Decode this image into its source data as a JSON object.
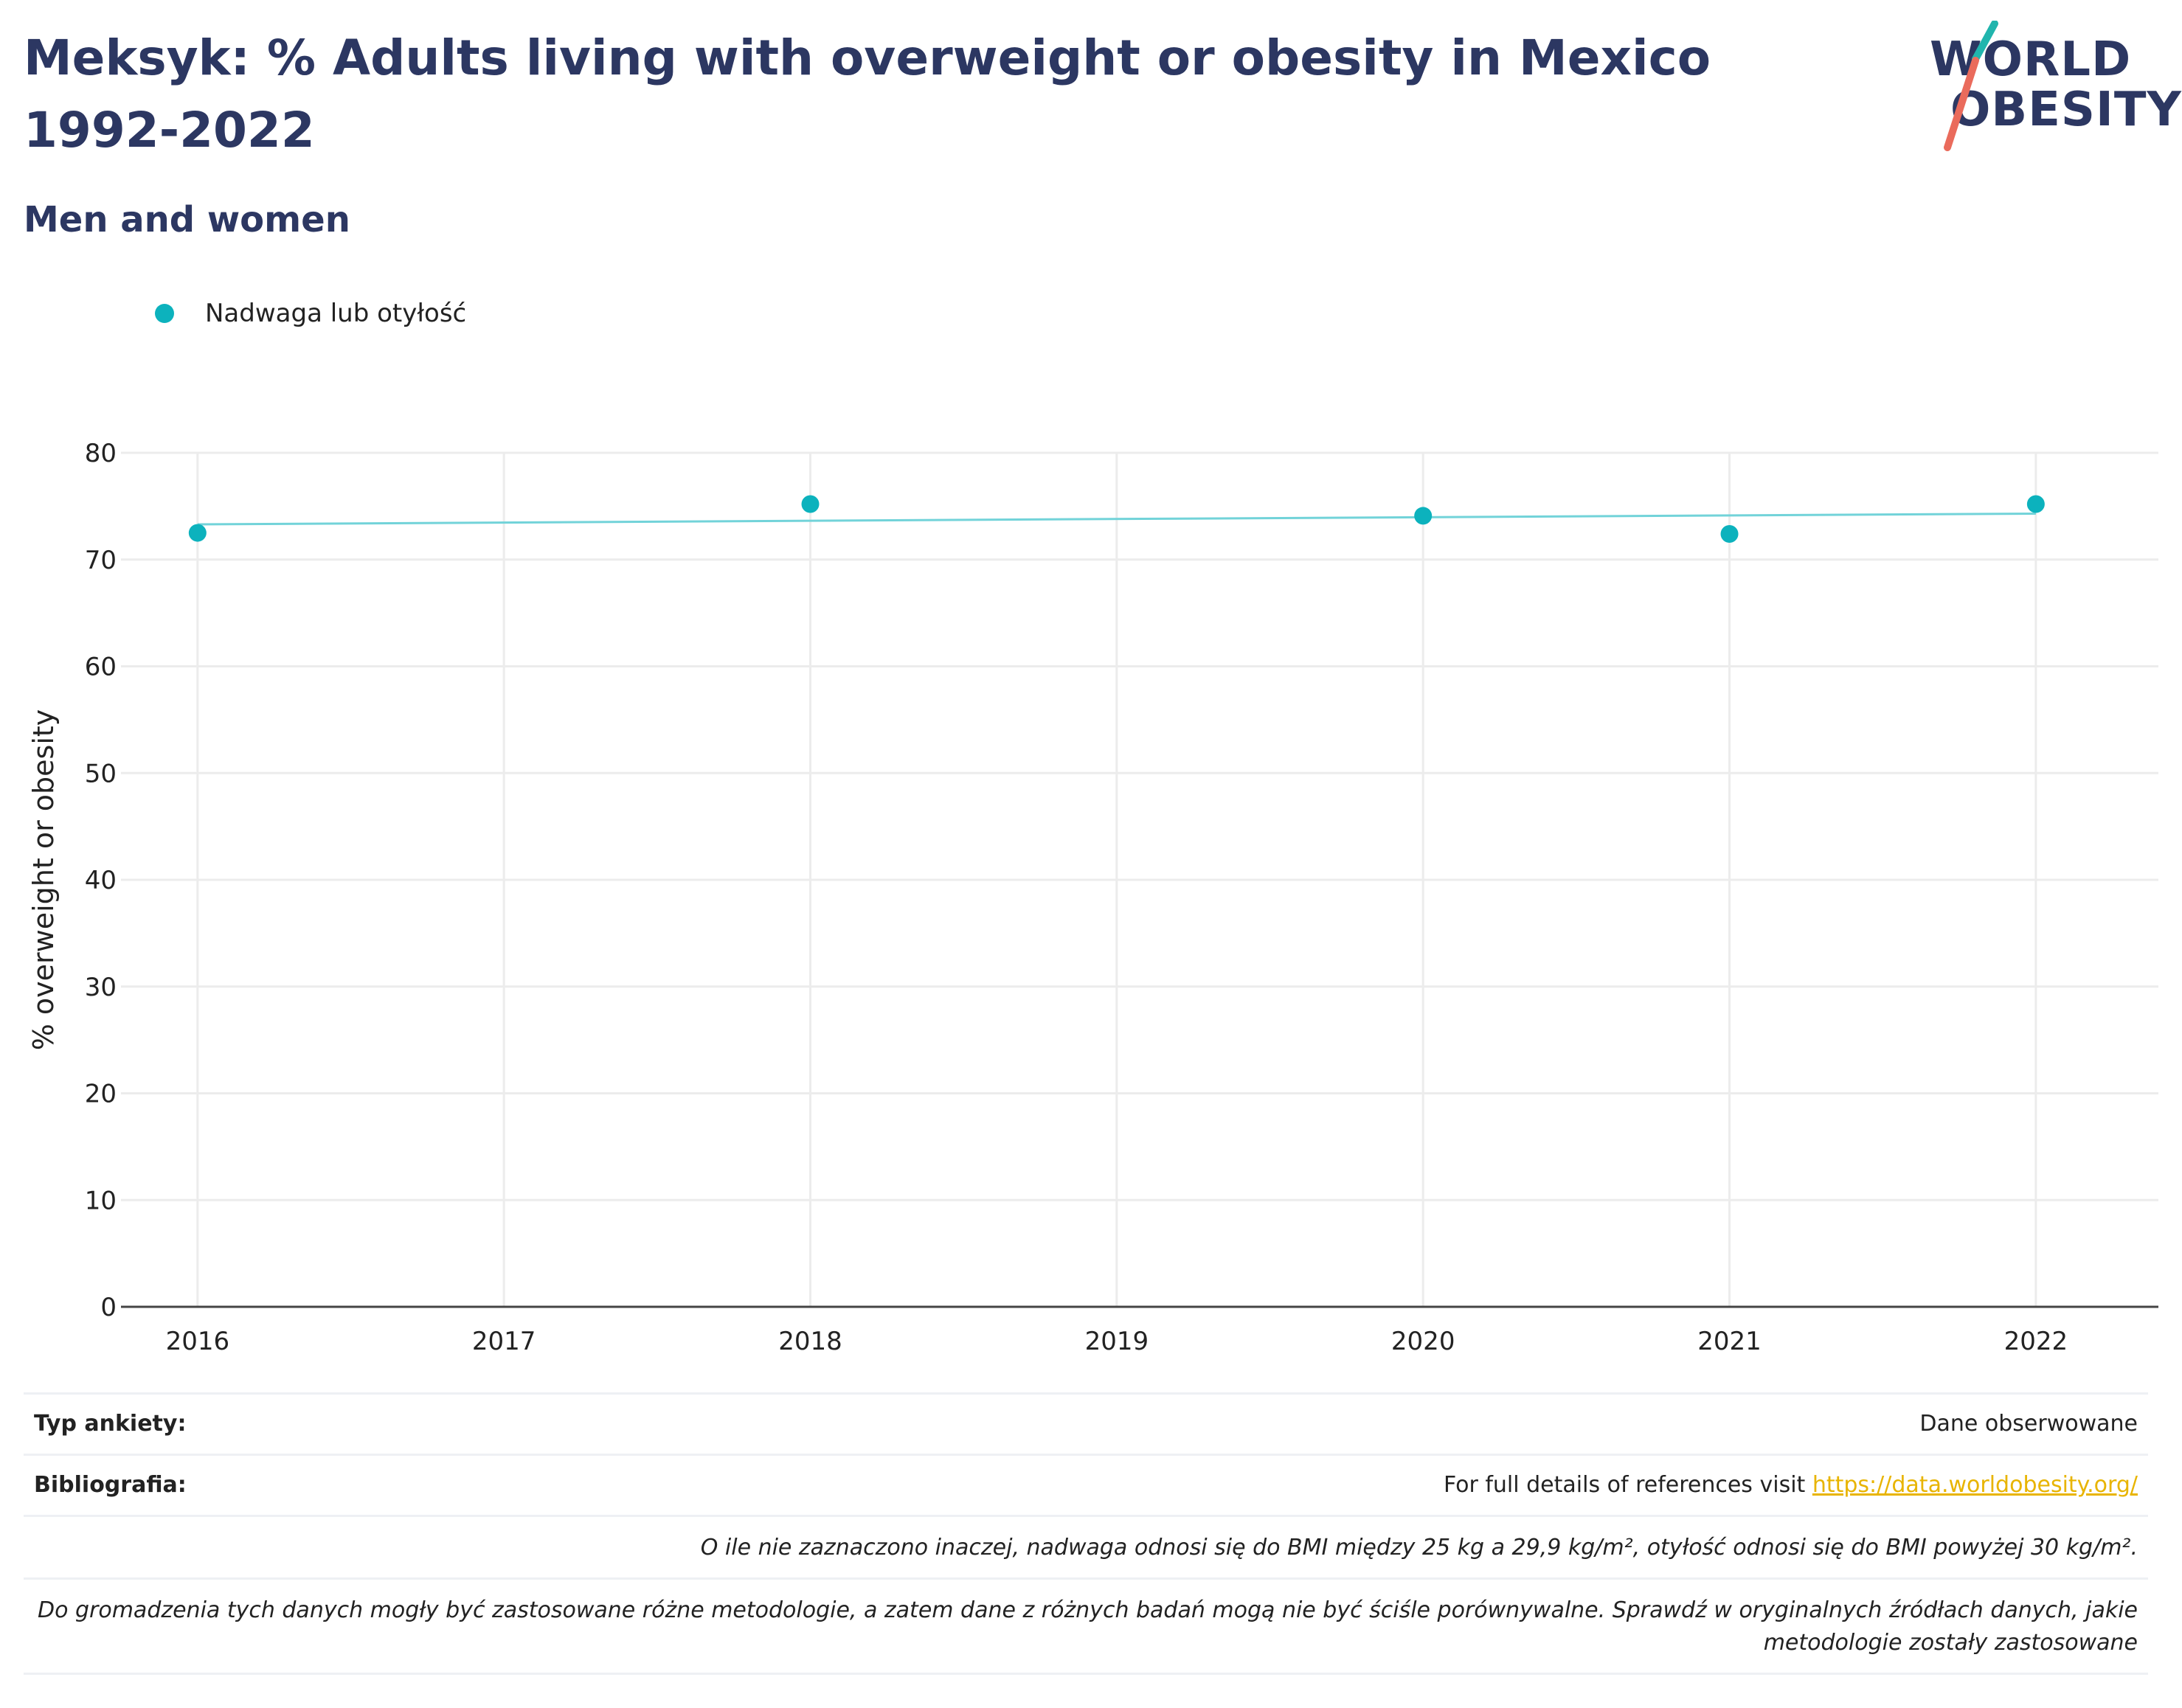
{
  "header": {
    "title": "Meksyk: % Adults living with overweight or obesity in Mexico 1992-2022",
    "subtitle": "Men and women"
  },
  "logo": {
    "line1": "WORLD",
    "line2": "OBESITY",
    "accent_teal": "#20b5ad",
    "accent_coral": "#ea6b5c"
  },
  "colors": {
    "series": "#0cb2bd",
    "trend": "#72d3d9",
    "text_dark": "#2c3762",
    "grid": "#ececec",
    "link": "#e8b400"
  },
  "chart_data": {
    "type": "scatter",
    "ylabel": "% overweight or obesity",
    "xlabel": "",
    "ylim": [
      0,
      80
    ],
    "yticks": [
      0,
      10,
      20,
      30,
      40,
      50,
      60,
      70,
      80
    ],
    "xticks": [
      "2016",
      "2017",
      "2018",
      "2019",
      "2020",
      "2021",
      "2022"
    ],
    "grid": true,
    "legend_placement": "top-left",
    "series": [
      {
        "name": "Nadwaga lub otyłość",
        "x": [
          2016,
          2018,
          2020,
          2021,
          2022
        ],
        "y": [
          72.5,
          75.2,
          74.1,
          72.4,
          75.2
        ]
      }
    ],
    "trendline": {
      "x": [
        2016,
        2022
      ],
      "y": [
        73.3,
        74.3
      ]
    }
  },
  "footer": {
    "rows": [
      {
        "label": "Typ ankiety:",
        "value": "Dane obserwowane"
      },
      {
        "label": "Bibliografia:",
        "value": "For full details of references visit ",
        "link": "https://data.worldobesity.org/"
      }
    ],
    "notes": [
      "O ile nie zaznaczono inaczej, nadwaga odnosi się do BMI między 25 kg a 29,9 kg/m², otyłość odnosi się do BMI powyżej 30 kg/m².",
      "Do gromadzenia tych danych mogły być zastosowane różne metodologie, a zatem dane z różnych badań mogą nie być ściśle porównywalne. Sprawdź w oryginalnych źródłach danych, jakie metodologie zostały zastosowane"
    ]
  }
}
